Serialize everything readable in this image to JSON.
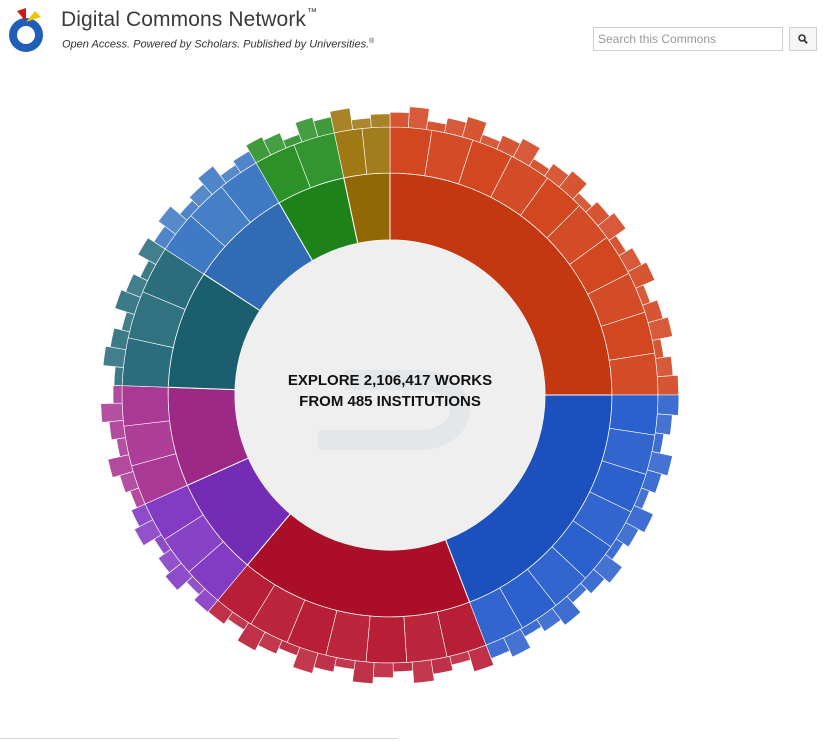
{
  "header": {
    "title": "Digital Commons Network",
    "title_mark": "™",
    "tagline": "Open Access. Powered by Scholars. Published by Universities.",
    "tagline_mark": "®"
  },
  "search": {
    "placeholder": "Search this Commons",
    "value": "",
    "button_icon": "search-icon"
  },
  "center": {
    "line1": "EXPLORE 2,106,417 WORKS",
    "line2": "FROM 485 INSTITUTIONS"
  },
  "colors": {
    "orange": "#cf3a12",
    "blue": "#1e56c9",
    "crimson": "#b5102a",
    "violet": "#7c2fbf",
    "magenta": "#a52c8e",
    "teal": "#1d6475",
    "sky": "#3472c0",
    "green": "#1f8a1b",
    "gold": "#9a6f05"
  },
  "chart_data": {
    "type": "sunburst",
    "segments": [
      {
        "color_key": "orange",
        "start": 0,
        "end": 90
      },
      {
        "color_key": "blue",
        "start": 90,
        "end": 159
      },
      {
        "color_key": "crimson",
        "start": 159,
        "end": 220
      },
      {
        "color_key": "violet",
        "start": 220,
        "end": 246
      },
      {
        "color_key": "magenta",
        "start": 246,
        "end": 272
      },
      {
        "color_key": "teal",
        "start": 272,
        "end": 303
      },
      {
        "color_key": "sky",
        "start": 303,
        "end": 330
      },
      {
        "color_key": "green",
        "start": 330,
        "end": 348
      },
      {
        "color_key": "gold",
        "start": 348,
        "end": 360
      }
    ]
  }
}
